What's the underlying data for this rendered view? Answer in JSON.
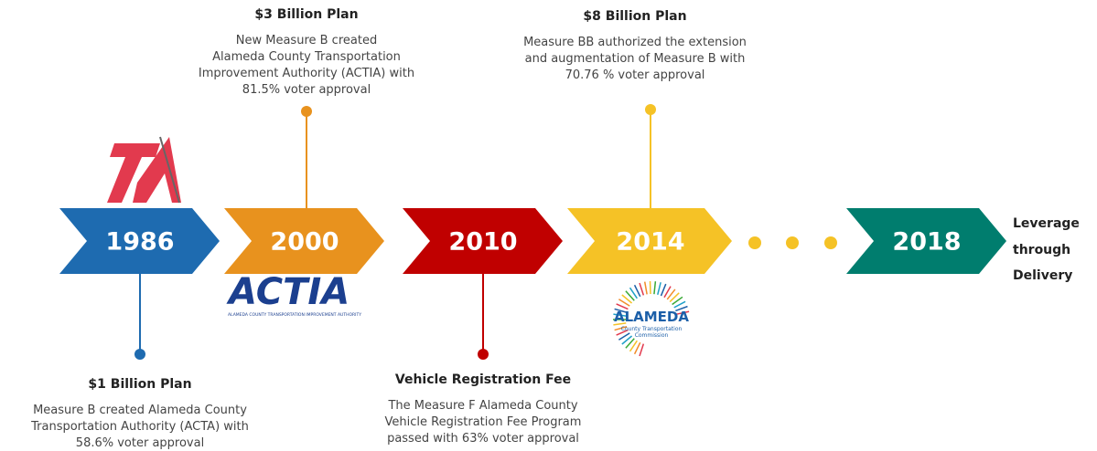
{
  "milestones": [
    {
      "year": "1986",
      "title": "$1 Billion Plan",
      "description": [
        "Measure B created Alameda County",
        "Transportation Authority (ACTA) with",
        "58.6% voter approval"
      ]
    },
    {
      "year": "2000",
      "title": "$3 Billion Plan",
      "description": [
        "New Measure B created",
        "Alameda County Transportation",
        "Improvement Authority (ACTIA) with",
        "81.5% voter approval"
      ]
    },
    {
      "year": "2010",
      "title": "Vehicle Registration Fee",
      "description": [
        "The Measure F Alameda County",
        "Vehicle Registration Fee Program",
        "passed with 63% voter approval"
      ]
    },
    {
      "year": "2014",
      "title": "$8 Billion Plan",
      "description": [
        "Measure BB authorized the extension",
        "and augmentation of Measure B with",
        "70.76 % voter approval"
      ]
    },
    {
      "year": "2018",
      "description": [
        "Leverage",
        "through",
        "Delivery"
      ]
    }
  ],
  "logos": {
    "actia": {
      "name": "ACTIA",
      "subtitle": "ALAMEDA COUNTY TRANSPORTATION IMPROVEMENT AUTHORITY"
    },
    "alameda": {
      "name": "ALAMEDA",
      "subtitle": [
        "County Transportation",
        "Commission"
      ]
    }
  }
}
